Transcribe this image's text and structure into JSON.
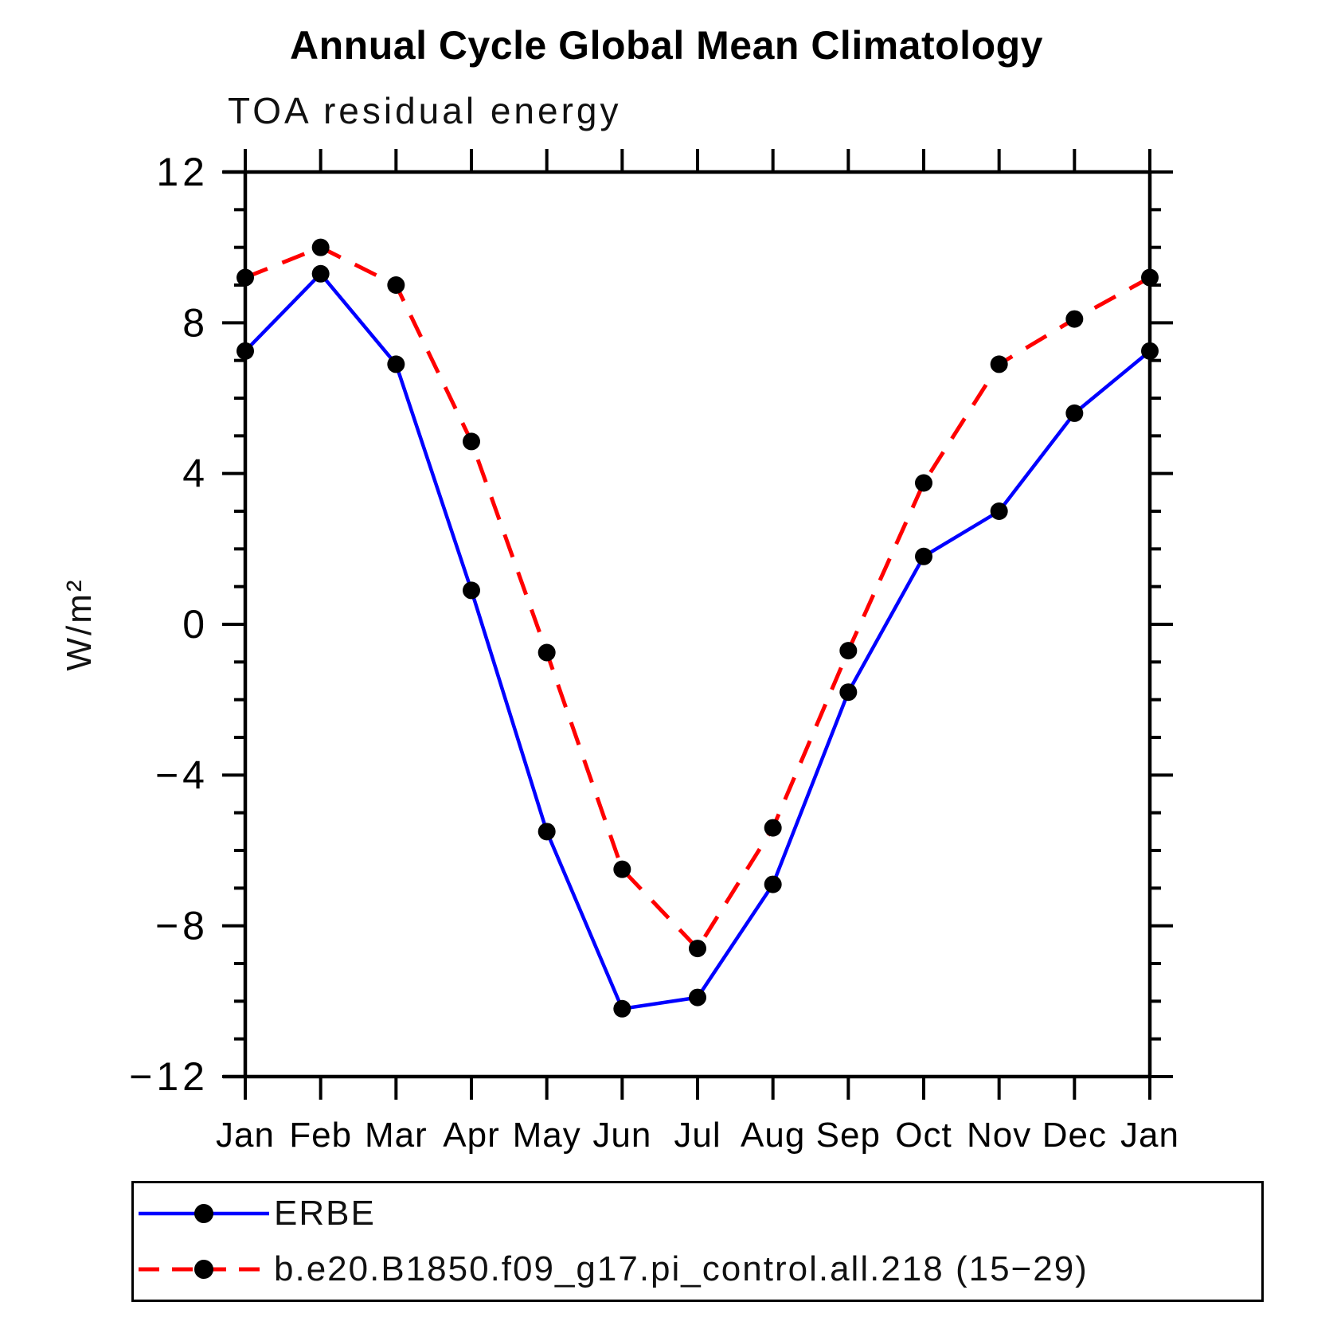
{
  "chart_data": {
    "type": "line",
    "title": "Annual Cycle Global Mean Climatology",
    "subtitle": "TOA residual energy",
    "ylabel": "W/m²",
    "xlabel": "",
    "categories": [
      "Jan",
      "Feb",
      "Mar",
      "Apr",
      "May",
      "Jun",
      "Jul",
      "Aug",
      "Sep",
      "Oct",
      "Nov",
      "Dec",
      "Jan"
    ],
    "series": [
      {
        "name": "ERBE",
        "color": "#0000ff",
        "line_style": "solid",
        "marker_color": "#000000",
        "values": [
          7.25,
          9.3,
          6.9,
          0.9,
          -5.5,
          -10.2,
          -9.9,
          -6.9,
          -1.8,
          1.8,
          3.0,
          5.6,
          7.25
        ]
      },
      {
        "name": "b.e20.B1850.f09_g17.pi_control.all.218 (15−29)",
        "color": "#ff0000",
        "line_style": "dashed",
        "marker_color": "#000000",
        "values": [
          9.2,
          10.0,
          9.0,
          4.85,
          -0.75,
          -6.5,
          -8.6,
          -5.4,
          -0.7,
          3.75,
          6.9,
          8.1,
          9.2
        ]
      }
    ],
    "ylim": [
      -12,
      12
    ],
    "yticks_major": [
      12,
      8,
      4,
      0,
      -4,
      -8,
      -12
    ],
    "minor_tick_interval": 1,
    "grid": false,
    "legend_position": "bottom",
    "axis_color": "#000000"
  }
}
